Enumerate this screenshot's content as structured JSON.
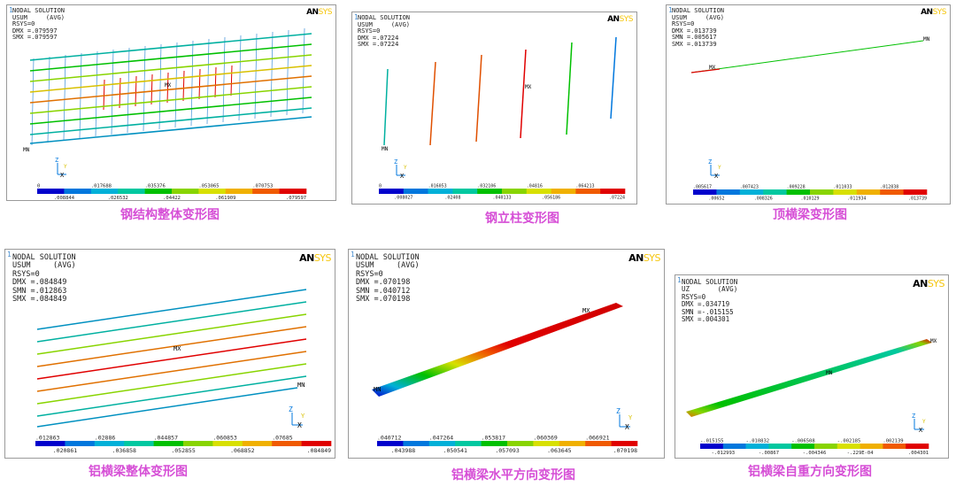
{
  "panels": [
    {
      "id": "p1",
      "header": [
        "NODAL SOLUTION",
        "",
        "USUM     (AVG)",
        "RSYS=0",
        "DMX =.079597",
        "SMX =.079597"
      ],
      "caption": "钢结构整体变形图",
      "mx": "MX",
      "mn": "MN",
      "legend_top": [
        "0",
        ".017688",
        ".035376",
        ".053065",
        ".070753"
      ],
      "legend_bottom": [
        ".008844",
        ".026532",
        ".04422",
        ".061909",
        ".079597"
      ]
    },
    {
      "id": "p2",
      "header": [
        "NODAL SOLUTION",
        "",
        "USUM     (AVG)",
        "RSYS=0",
        "DMX =.07224",
        "SMX =.07224"
      ],
      "caption": "钢立柱变形图",
      "mx": "MX",
      "mn": "MN",
      "legend_top": [
        "0",
        ".016053",
        ".032106",
        ".04816",
        ".064213"
      ],
      "legend_bottom": [
        ".008027",
        ".02408",
        ".040133",
        ".056186",
        ".07224"
      ]
    },
    {
      "id": "p3",
      "header": [
        "NODAL SOLUTION",
        "",
        "USUM     (AVG)",
        "RSYS=0",
        "DMX =.013739",
        "SMN =.005617",
        "SMX =.013739"
      ],
      "caption": "顶横梁变形图",
      "mx": "MX",
      "mn": "MN",
      "legend_top": [
        ".005617",
        ".007423",
        ".009228",
        ".011033",
        ".012838"
      ],
      "legend_bottom": [
        ".00652",
        ".008326",
        ".010129",
        ".011934",
        ".013739"
      ]
    },
    {
      "id": "p4",
      "header": [
        "NODAL SOLUTION",
        "",
        "USUM     (AVG)",
        "RSYS=0",
        "DMX =.084849",
        "SMN =.012863",
        "SMX =.084849"
      ],
      "caption": "铝横梁整体变形图",
      "mx": "MX",
      "mn": "MN",
      "legend_top": [
        ".012863",
        ".02886",
        ".044857",
        ".060853",
        ".07685"
      ],
      "legend_bottom": [
        ".020861",
        ".036858",
        ".052855",
        ".068852",
        ".084849"
      ]
    },
    {
      "id": "p5",
      "header": [
        "NODAL SOLUTION",
        "",
        "USUM     (AVG)",
        "RSYS=0",
        "DMX =.070198",
        "SMN =.040712",
        "SMX =.070198"
      ],
      "caption": "铝横梁水平方向变形图",
      "mx": "MX",
      "mn": "MN",
      "legend_top": [
        ".040712",
        ".047264",
        ".053817",
        ".060369",
        ".066921"
      ],
      "legend_bottom": [
        ".043988",
        ".050541",
        ".057093",
        ".063645",
        ".070198"
      ]
    },
    {
      "id": "p6",
      "header": [
        "NODAL SOLUTION",
        "",
        "UZ       (AVG)",
        "RSYS=0",
        "DMX =.034719",
        "SMN =-.015155",
        "SMX =.004301"
      ],
      "caption": "铝横梁自重方向变形图",
      "mx": "MX",
      "mn": "MN",
      "legend_top": [
        "-.015155",
        "-.010832",
        "-.006508",
        "-.002185",
        ".002139"
      ],
      "legend_bottom": [
        "-.012993",
        "-.00867",
        "-.004346",
        "-.229E-04",
        ".004301"
      ]
    }
  ],
  "logo_an": "AN",
  "logo_sys": "SYS",
  "axes": {
    "y": "Y",
    "z": "Z",
    "x": "X"
  },
  "panel_number": "1",
  "colors": [
    "#0000cc",
    "#0077dd",
    "#00b0d8",
    "#00c8a0",
    "#00c000",
    "#88d400",
    "#d8e000",
    "#f0b000",
    "#f05a00",
    "#e00000"
  ]
}
